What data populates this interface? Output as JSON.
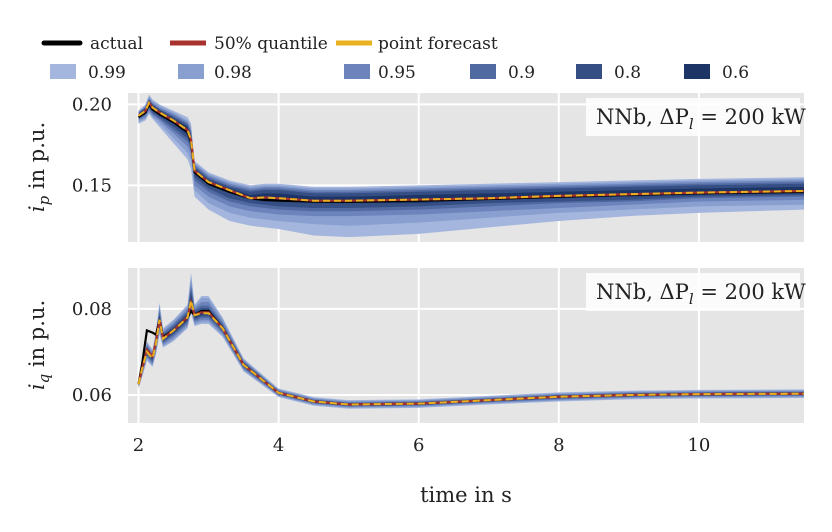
{
  "chart_data": [
    {
      "type": "area",
      "panel": "top",
      "ylabel": "i_p in p.u.",
      "ylabel_main": "i",
      "ylabel_sub": "p",
      "ylabel_rest": " in p.u.",
      "ylim": [
        0.115,
        0.207
      ],
      "yticks": [
        0.15,
        0.2
      ],
      "ytick_labels": [
        "0.15",
        "0.20"
      ],
      "xlim": [
        1.85,
        11.5
      ],
      "annotation": {
        "prefix": "NNb, ΔP",
        "sub": "l",
        "suffix": " = 200 kW"
      },
      "x": [
        2.0,
        2.1,
        2.15,
        2.2,
        2.3,
        2.5,
        2.7,
        2.75,
        2.8,
        3.0,
        3.3,
        3.6,
        3.8,
        4.0,
        4.5,
        5.0,
        6.0,
        7.0,
        8.0,
        9.0,
        10.0,
        11.5
      ],
      "actual": [
        0.192,
        0.195,
        0.2,
        0.197,
        0.194,
        0.189,
        0.183,
        0.177,
        0.158,
        0.151,
        0.146,
        0.142,
        0.141,
        0.1405,
        0.14,
        0.1398,
        0.1405,
        0.1415,
        0.143,
        0.1442,
        0.1452,
        0.146
      ],
      "point_forecast": [
        0.193,
        0.196,
        0.201,
        0.198,
        0.195,
        0.19,
        0.184,
        0.178,
        0.159,
        0.152,
        0.147,
        0.142,
        0.1425,
        0.142,
        0.1405,
        0.1405,
        0.1412,
        0.142,
        0.1435,
        0.1445,
        0.1455,
        0.1465
      ],
      "median_50": [
        0.193,
        0.196,
        0.201,
        0.198,
        0.195,
        0.19,
        0.184,
        0.178,
        0.159,
        0.152,
        0.147,
        0.142,
        0.1425,
        0.142,
        0.1405,
        0.1405,
        0.1412,
        0.142,
        0.1435,
        0.1445,
        0.1455,
        0.1465
      ],
      "series": [
        {
          "name": "0.99",
          "lower": [
            0.188,
            0.19,
            0.194,
            0.191,
            0.186,
            0.176,
            0.166,
            0.16,
            0.143,
            0.135,
            0.128,
            0.125,
            0.124,
            0.123,
            0.119,
            0.118,
            0.12,
            0.124,
            0.128,
            0.131,
            0.133,
            0.135
          ],
          "upper": [
            0.196,
            0.2,
            0.206,
            0.203,
            0.2,
            0.196,
            0.192,
            0.188,
            0.165,
            0.158,
            0.153,
            0.15,
            0.151,
            0.151,
            0.149,
            0.149,
            0.15,
            0.151,
            0.152,
            0.153,
            0.154,
            0.155
          ]
        },
        {
          "name": "0.98",
          "lower": [
            0.189,
            0.191,
            0.195,
            0.192,
            0.188,
            0.179,
            0.17,
            0.165,
            0.147,
            0.139,
            0.133,
            0.13,
            0.129,
            0.128,
            0.126,
            0.125,
            0.127,
            0.13,
            0.133,
            0.135,
            0.137,
            0.138
          ],
          "upper": [
            0.196,
            0.199,
            0.205,
            0.202,
            0.199,
            0.195,
            0.19,
            0.186,
            0.164,
            0.157,
            0.152,
            0.149,
            0.15,
            0.15,
            0.148,
            0.148,
            0.149,
            0.15,
            0.151,
            0.152,
            0.153,
            0.154
          ]
        },
        {
          "name": "0.95",
          "lower": [
            0.19,
            0.192,
            0.196,
            0.193,
            0.19,
            0.182,
            0.174,
            0.169,
            0.15,
            0.143,
            0.137,
            0.134,
            0.133,
            0.132,
            0.131,
            0.131,
            0.132,
            0.134,
            0.136,
            0.138,
            0.14,
            0.141
          ],
          "upper": [
            0.195,
            0.199,
            0.204,
            0.201,
            0.198,
            0.194,
            0.189,
            0.184,
            0.163,
            0.156,
            0.151,
            0.148,
            0.149,
            0.149,
            0.147,
            0.147,
            0.148,
            0.149,
            0.15,
            0.151,
            0.152,
            0.153
          ]
        },
        {
          "name": "0.9",
          "lower": [
            0.191,
            0.193,
            0.197,
            0.194,
            0.191,
            0.184,
            0.177,
            0.172,
            0.153,
            0.146,
            0.14,
            0.137,
            0.136,
            0.135,
            0.134,
            0.134,
            0.135,
            0.137,
            0.139,
            0.14,
            0.142,
            0.143
          ],
          "upper": [
            0.195,
            0.198,
            0.203,
            0.2,
            0.197,
            0.193,
            0.188,
            0.183,
            0.162,
            0.155,
            0.15,
            0.147,
            0.148,
            0.148,
            0.146,
            0.146,
            0.147,
            0.148,
            0.149,
            0.15,
            0.151,
            0.152
          ]
        },
        {
          "name": "0.8",
          "lower": [
            0.192,
            0.194,
            0.198,
            0.195,
            0.192,
            0.186,
            0.179,
            0.174,
            0.155,
            0.148,
            0.142,
            0.139,
            0.138,
            0.137,
            0.136,
            0.136,
            0.137,
            0.139,
            0.14,
            0.141,
            0.143,
            0.144
          ],
          "upper": [
            0.194,
            0.198,
            0.203,
            0.2,
            0.197,
            0.192,
            0.187,
            0.181,
            0.161,
            0.154,
            0.149,
            0.146,
            0.147,
            0.147,
            0.145,
            0.145,
            0.146,
            0.147,
            0.148,
            0.149,
            0.15,
            0.151
          ]
        },
        {
          "name": "0.6",
          "lower": [
            0.192,
            0.195,
            0.199,
            0.196,
            0.193,
            0.188,
            0.181,
            0.176,
            0.157,
            0.15,
            0.145,
            0.141,
            0.14,
            0.14,
            0.139,
            0.139,
            0.139,
            0.141,
            0.142,
            0.143,
            0.144,
            0.145
          ],
          "upper": [
            0.194,
            0.197,
            0.202,
            0.199,
            0.196,
            0.191,
            0.186,
            0.18,
            0.16,
            0.153,
            0.148,
            0.144,
            0.145,
            0.145,
            0.143,
            0.143,
            0.144,
            0.145,
            0.146,
            0.147,
            0.148,
            0.149
          ]
        }
      ]
    },
    {
      "type": "area",
      "panel": "bottom",
      "ylabel": "i_q in p.u.",
      "ylabel_main": "i",
      "ylabel_sub": "q",
      "ylabel_rest": " in p.u.",
      "ylim": [
        0.0535,
        0.0895
      ],
      "yticks": [
        0.06,
        0.08
      ],
      "ytick_labels": [
        "0.06",
        "0.08"
      ],
      "xlim": [
        1.85,
        11.5
      ],
      "xticks": [
        2,
        4,
        6,
        8,
        10
      ],
      "xtick_labels": [
        "2",
        "4",
        "6",
        "8",
        "10"
      ],
      "xlabel": "time in s",
      "annotation": {
        "prefix": "NNb, ΔP",
        "sub": "l",
        "suffix": " = 200 kW"
      },
      "x": [
        2.0,
        2.05,
        2.12,
        2.2,
        2.25,
        2.3,
        2.35,
        2.5,
        2.7,
        2.75,
        2.8,
        2.9,
        3.0,
        3.2,
        3.5,
        4.0,
        4.5,
        5.0,
        6.0,
        7.0,
        8.0,
        9.0,
        10.0,
        11.5
      ],
      "actual": [
        0.0625,
        0.067,
        0.075,
        0.0745,
        0.074,
        0.0775,
        0.0735,
        0.075,
        0.078,
        0.0795,
        0.0785,
        0.0795,
        0.0795,
        0.0755,
        0.067,
        0.0605,
        0.0585,
        0.0578,
        0.058,
        0.0588,
        0.0596,
        0.06,
        0.0602,
        0.0603
      ],
      "point_forecast": [
        0.0625,
        0.066,
        0.07,
        0.0685,
        0.072,
        0.0775,
        0.073,
        0.075,
        0.078,
        0.082,
        0.0785,
        0.079,
        0.079,
        0.0755,
        0.067,
        0.0605,
        0.0585,
        0.0578,
        0.058,
        0.0588,
        0.0596,
        0.06,
        0.0602,
        0.0603
      ],
      "median_50": [
        0.0625,
        0.066,
        0.0705,
        0.069,
        0.0725,
        0.0775,
        0.0732,
        0.075,
        0.0781,
        0.0815,
        0.0786,
        0.0792,
        0.0792,
        0.0755,
        0.067,
        0.0605,
        0.0585,
        0.0578,
        0.058,
        0.0588,
        0.0596,
        0.06,
        0.0602,
        0.0603
      ],
      "series": [
        {
          "name": "0.99",
          "lower": [
            0.0615,
            0.064,
            0.068,
            0.0665,
            0.0695,
            0.074,
            0.071,
            0.0725,
            0.0755,
            0.079,
            0.076,
            0.0765,
            0.0765,
            0.0735,
            0.0655,
            0.0595,
            0.0575,
            0.0568,
            0.057,
            0.0578,
            0.0585,
            0.059,
            0.0592,
            0.0593
          ],
          "upper": [
            0.0635,
            0.068,
            0.0725,
            0.0705,
            0.075,
            0.0815,
            0.0755,
            0.0775,
            0.081,
            0.0885,
            0.081,
            0.083,
            0.083,
            0.078,
            0.0685,
            0.0615,
            0.0595,
            0.0588,
            0.059,
            0.0598,
            0.0606,
            0.061,
            0.0612,
            0.0613
          ]
        },
        {
          "name": "0.98",
          "lower": [
            0.0617,
            0.0643,
            0.0683,
            0.0668,
            0.0698,
            0.0745,
            0.0713,
            0.0728,
            0.0758,
            0.0795,
            0.0763,
            0.0769,
            0.0769,
            0.0738,
            0.0657,
            0.0597,
            0.0577,
            0.057,
            0.0572,
            0.058,
            0.0587,
            0.0592,
            0.0594,
            0.0595
          ],
          "upper": [
            0.0633,
            0.0677,
            0.0722,
            0.0702,
            0.0747,
            0.081,
            0.0752,
            0.0772,
            0.0806,
            0.0875,
            0.0807,
            0.0825,
            0.0825,
            0.0777,
            0.0683,
            0.0613,
            0.0593,
            0.0586,
            0.0588,
            0.0596,
            0.0604,
            0.0608,
            0.061,
            0.0611
          ]
        },
        {
          "name": "0.95",
          "lower": [
            0.0619,
            0.0647,
            0.0687,
            0.0672,
            0.0703,
            0.0752,
            0.0717,
            0.0733,
            0.0763,
            0.0801,
            0.0768,
            0.0774,
            0.0774,
            0.0742,
            0.066,
            0.0599,
            0.0579,
            0.0572,
            0.0574,
            0.0582,
            0.0589,
            0.0594,
            0.0596,
            0.0597
          ],
          "upper": [
            0.0631,
            0.0673,
            0.0718,
            0.0698,
            0.0742,
            0.0802,
            0.0747,
            0.0767,
            0.08,
            0.0862,
            0.0802,
            0.0816,
            0.0816,
            0.0771,
            0.068,
            0.0611,
            0.0591,
            0.0584,
            0.0586,
            0.0594,
            0.0602,
            0.0606,
            0.0608,
            0.0609
          ]
        },
        {
          "name": "0.9",
          "lower": [
            0.0621,
            0.065,
            0.0691,
            0.0676,
            0.0708,
            0.0758,
            0.0721,
            0.0738,
            0.0767,
            0.0806,
            0.0772,
            0.0779,
            0.0779,
            0.0746,
            0.0663,
            0.0601,
            0.0581,
            0.0574,
            0.0576,
            0.0584,
            0.0591,
            0.0596,
            0.0598,
            0.0599
          ],
          "upper": [
            0.0629,
            0.067,
            0.0714,
            0.0694,
            0.0737,
            0.0795,
            0.0743,
            0.0763,
            0.0795,
            0.0852,
            0.0798,
            0.0808,
            0.0808,
            0.0766,
            0.0678,
            0.0609,
            0.0589,
            0.0582,
            0.0584,
            0.0592,
            0.06,
            0.0604,
            0.0606,
            0.0607
          ]
        },
        {
          "name": "0.8",
          "lower": [
            0.0622,
            0.0653,
            0.0695,
            0.068,
            0.0712,
            0.0763,
            0.0724,
            0.0742,
            0.0772,
            0.0809,
            0.0776,
            0.0783,
            0.0783,
            0.075,
            0.0666,
            0.0602,
            0.0582,
            0.0575,
            0.0577,
            0.0585,
            0.0593,
            0.0597,
            0.0599,
            0.06
          ],
          "upper": [
            0.0628,
            0.0667,
            0.071,
            0.069,
            0.0732,
            0.0788,
            0.0739,
            0.0758,
            0.079,
            0.0843,
            0.0794,
            0.0802,
            0.0802,
            0.0762,
            0.0675,
            0.0608,
            0.0588,
            0.0581,
            0.0583,
            0.0591,
            0.0599,
            0.0603,
            0.0605,
            0.0606
          ]
        },
        {
          "name": "0.6",
          "lower": [
            0.0623,
            0.0656,
            0.0699,
            0.0684,
            0.0716,
            0.0767,
            0.0727,
            0.0746,
            0.0776,
            0.0811,
            0.078,
            0.0787,
            0.0787,
            0.0753,
            0.0668,
            0.0603,
            0.0583,
            0.0576,
            0.0578,
            0.0586,
            0.0594,
            0.0598,
            0.06,
            0.0601
          ],
          "upper": [
            0.0627,
            0.0664,
            0.0707,
            0.0692,
            0.0728,
            0.0782,
            0.0736,
            0.0754,
            0.0786,
            0.0828,
            0.0791,
            0.0797,
            0.0797,
            0.0758,
            0.0672,
            0.0607,
            0.0587,
            0.058,
            0.0582,
            0.059,
            0.0597,
            0.0602,
            0.0604,
            0.0605
          ]
        }
      ]
    }
  ],
  "legend": {
    "lines": [
      {
        "label": "actual",
        "color": "#000000"
      },
      {
        "label": "50% quantile",
        "color": "#a8322d"
      },
      {
        "label": "point forecast",
        "color": "#e8b120"
      }
    ],
    "bands": [
      {
        "label": "0.99",
        "color": "#a4b6de"
      },
      {
        "label": "0.98",
        "color": "#889fcf"
      },
      {
        "label": "0.95",
        "color": "#6c84bb"
      },
      {
        "label": "0.9",
        "color": "#506aa1"
      },
      {
        "label": "0.8",
        "color": "#354f84"
      },
      {
        "label": "0.6",
        "color": "#1d3466"
      }
    ]
  },
  "colors": {
    "panel_bg": "#e5e5e5",
    "grid": "#ffffff",
    "actual": "#000000",
    "median": "#a8322d",
    "point_forecast": "#e8b120"
  }
}
